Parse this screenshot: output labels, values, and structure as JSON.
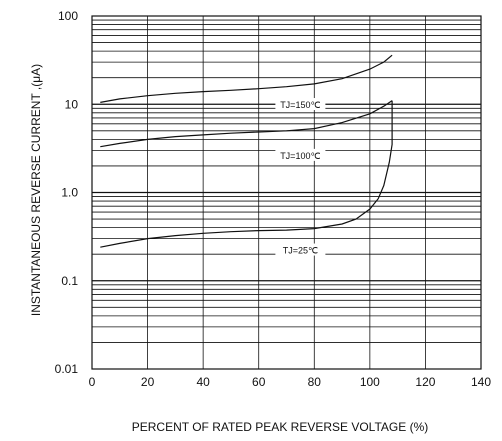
{
  "chart_data": {
    "type": "line",
    "title": "",
    "xlabel": "PERCENT OF RATED PEAK REVERSE  VOLTAGE (%)",
    "ylabel": "INSTANTANEOUS  REVERSE CURRENT ,(μA)",
    "xlim": [
      0,
      140
    ],
    "ylim": [
      0.01,
      100
    ],
    "yscale": "log",
    "x_ticks": [
      "0",
      "20",
      "40",
      "60",
      "80",
      "100",
      "120",
      "140"
    ],
    "y_ticks": [
      "0.01",
      "0.1",
      "1.0",
      "10",
      "100"
    ],
    "grid": true,
    "series": [
      {
        "name": "TJ=150℃",
        "x": [
          3,
          10,
          20,
          30,
          40,
          50,
          60,
          70,
          80,
          90,
          100,
          105,
          108
        ],
        "y": [
          10.5,
          11.5,
          12.5,
          13.3,
          13.9,
          14.4,
          15.0,
          15.8,
          17.0,
          19.5,
          25.0,
          30.0,
          36.0
        ]
      },
      {
        "name": "TJ=100℃",
        "x": [
          3,
          10,
          20,
          30,
          40,
          50,
          60,
          70,
          80,
          90,
          100,
          105,
          108
        ],
        "y": [
          3.3,
          3.6,
          4.0,
          4.3,
          4.5,
          4.7,
          4.85,
          5.0,
          5.3,
          6.2,
          7.8,
          9.5,
          11.0
        ]
      },
      {
        "name": "TJ=25℃",
        "x": [
          3,
          10,
          20,
          30,
          40,
          50,
          60,
          70,
          80,
          90,
          95,
          100,
          103,
          105,
          107,
          108,
          108
        ],
        "y": [
          0.24,
          0.265,
          0.3,
          0.325,
          0.345,
          0.36,
          0.37,
          0.375,
          0.39,
          0.44,
          0.5,
          0.65,
          0.85,
          1.2,
          2.2,
          3.5,
          11.0
        ]
      }
    ],
    "annotations": [
      "TJ=150℃",
      "TJ=100℃",
      "TJ=25℃"
    ]
  }
}
